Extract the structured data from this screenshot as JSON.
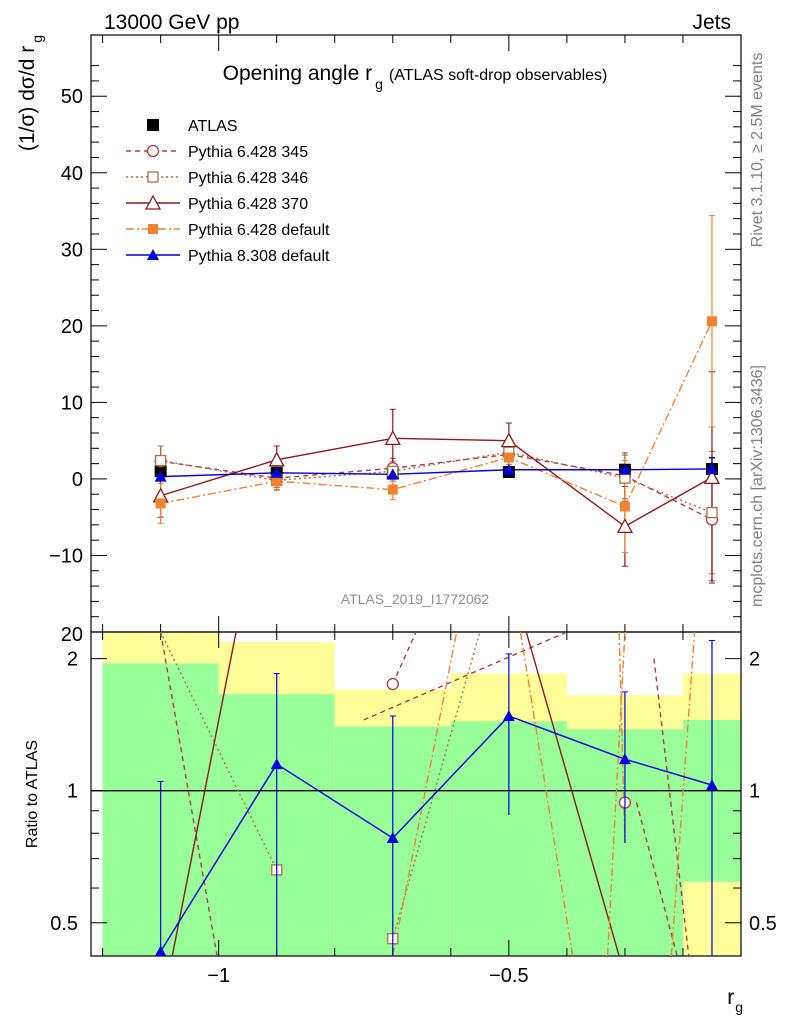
{
  "header": {
    "energy_label": "13000 GeV pp",
    "process_label": "Jets"
  },
  "side": {
    "rivet_label": "Rivet 3.1.10, ≥ 2.5M events",
    "mcplots_label": "mcplots.cern.ch [arXiv:1306.3436]"
  },
  "chart_data": {
    "type": "line",
    "title_main": "Opening angle r",
    "title_sub": "g",
    "title_extra": "(ATLAS soft-drop observables)",
    "analysis_id": "ATLAS_2019_I1772062",
    "xlabel": "r",
    "xlabel_sub": "g",
    "ylabel_top": "(1/σ) dσ/d r",
    "ylabel_top_sub": "g",
    "ylabel_bottom": "Ratio to ATLAS",
    "xlim": [
      -1.22,
      -0.1
    ],
    "ylim_top": [
      -20,
      58
    ],
    "ylim_bottom_log": [
      0.42,
      2.3
    ],
    "x_ticks": [
      -1,
      -0.5
    ],
    "x_tick_labels": [
      "−1",
      "−0.5"
    ],
    "y_ticks_top": [
      -10,
      0,
      10,
      20,
      30,
      40,
      50
    ],
    "y_tick_labels_top": [
      "−10",
      "0",
      "10",
      "20",
      "30",
      "40",
      "50"
    ],
    "y_top_partial_label": "20",
    "y_ticks_bottom": [
      0.5,
      1,
      2
    ],
    "y_tick_labels_bottom": [
      "0.5",
      "1",
      "2"
    ],
    "bins": [
      [
        -1.2,
        -1.0
      ],
      [
        -1.0,
        -0.8
      ],
      [
        -0.8,
        -0.6
      ],
      [
        -0.6,
        -0.4
      ],
      [
        -0.4,
        -0.2
      ],
      [
        -0.2,
        -0.1
      ]
    ],
    "x": [
      -1.1,
      -0.9,
      -0.7,
      -0.5,
      -0.3,
      -0.15
    ],
    "band_green": [
      [
        0.42,
        1.95
      ],
      [
        0.42,
        1.66
      ],
      [
        0.42,
        1.4
      ],
      [
        0.42,
        1.44
      ],
      [
        0.42,
        1.38
      ],
      [
        0.62,
        1.45
      ]
    ],
    "band_yellow": [
      [
        0.42,
        2.3
      ],
      [
        0.42,
        2.18
      ],
      [
        0.42,
        1.7
      ],
      [
        0.42,
        1.85
      ],
      [
        0.42,
        1.65
      ],
      [
        0.42,
        1.85
      ]
    ],
    "series": [
      {
        "name": "ATLAS",
        "color": "#000000",
        "marker": "square-filled",
        "dash": "",
        "values": [
          1.0,
          0.8,
          0.7,
          0.9,
          1.2,
          1.3
        ],
        "errors": [
          0.3,
          0.3,
          0.3,
          0.3,
          0.3,
          0.4
        ],
        "ratio": null,
        "ratio_err": null
      },
      {
        "name": "Pythia 6.428 345",
        "color": "#b03a48",
        "marker": "circle-open",
        "dash": "5,4",
        "values": [
          2.3,
          0.1,
          1.4,
          3.2,
          0.4,
          -5.3
        ],
        "errors": [
          2.0,
          1.2,
          1.3,
          1.6,
          3.0,
          8.0
        ],
        "ratio": [
          null,
          null,
          1.75,
          null,
          0.94,
          null
        ],
        "ratio_err": [
          null,
          null,
          null,
          null,
          null,
          null
        ]
      },
      {
        "name": "Pythia 6.428 346",
        "color": "#a07840",
        "marker": "square-open",
        "dash": "2,3",
        "values": [
          2.4,
          -0.2,
          1.0,
          3.5,
          0.1,
          -4.4
        ],
        "errors": [
          1.9,
          1.2,
          1.3,
          1.6,
          3.0,
          8.0
        ],
        "ratio": [
          null,
          0.66,
          0.46,
          null,
          null,
          null
        ],
        "ratio_err": [
          null,
          null,
          null,
          null,
          null,
          null
        ]
      },
      {
        "name": "Pythia 6.428 370",
        "color": "#8b1a1a",
        "marker": "triangle-open",
        "dash": "",
        "values": [
          -2.2,
          2.5,
          5.3,
          5.0,
          -6.2,
          0.2
        ],
        "errors": [
          2.8,
          1.8,
          3.8,
          2.3,
          5.2,
          13.8
        ],
        "ratio": [
          null,
          null,
          null,
          null,
          null,
          null
        ],
        "ratio_err": [
          null,
          null,
          null,
          null,
          null,
          null
        ]
      },
      {
        "name": "Pythia 6.428 default",
        "color": "#f08232",
        "marker": "square-filled-small",
        "dash": "8,3,2,3",
        "values": [
          -3.2,
          -0.3,
          -1.4,
          2.8,
          -3.6,
          20.6
        ],
        "errors": [
          2.6,
          1.2,
          1.3,
          1.6,
          6.0,
          13.8
        ],
        "ratio": [
          null,
          null,
          null,
          null,
          null,
          null
        ],
        "ratio_err": [
          null,
          null,
          null,
          null,
          null,
          null
        ]
      },
      {
        "name": "Pythia 8.308 default",
        "color": "#0000e0",
        "marker": "triangle-filled",
        "dash": "",
        "values": [
          0.3,
          0.8,
          0.6,
          1.2,
          1.2,
          1.3
        ],
        "errors": [
          0.3,
          0.3,
          0.3,
          0.3,
          0.3,
          1.5
        ],
        "ratio": [
          0.43,
          1.15,
          0.78,
          1.48,
          1.18,
          1.03
        ],
        "ratio_err": [
          [
            0.42,
            1.05
          ],
          [
            0.42,
            1.85
          ],
          [
            0.42,
            1.48
          ],
          [
            0.88,
            2.05
          ],
          [
            0.76,
            1.68
          ],
          [
            0.42,
            2.2
          ]
        ]
      }
    ],
    "offscale_lines": [
      {
        "series": 1,
        "segments": [
          [
            -1.1,
            2.3,
            -1.0,
            0.4
          ],
          [
            -0.75,
            1.45,
            -0.4,
            2.3
          ],
          [
            -0.25,
            2.0,
            -0.19,
            0.42
          ],
          [
            -0.7,
            1.75,
            -0.66,
            2.3
          ],
          [
            -0.28,
            0.94,
            -0.21,
            0.42
          ]
        ]
      },
      {
        "series": 2,
        "segments": [
          [
            -1.1,
            2.3,
            -0.9,
            0.66
          ],
          [
            -0.7,
            0.46,
            -0.55,
            2.3
          ]
        ]
      },
      {
        "series": 3,
        "segments": [
          [
            -1.08,
            0.42,
            -0.97,
            2.3
          ],
          [
            -0.47,
            2.3,
            -0.31,
            0.42
          ]
        ]
      },
      {
        "series": 4,
        "segments": [
          [
            -0.7,
            0.42,
            -0.59,
            2.3
          ],
          [
            -0.48,
            2.3,
            -0.39,
            0.42
          ],
          [
            -0.22,
            0.42,
            -0.18,
            2.3
          ],
          [
            -0.33,
            0.42,
            -0.3,
            2.3
          ],
          [
            -0.31,
            2.3,
            -0.3,
            0.76
          ]
        ]
      }
    ]
  }
}
